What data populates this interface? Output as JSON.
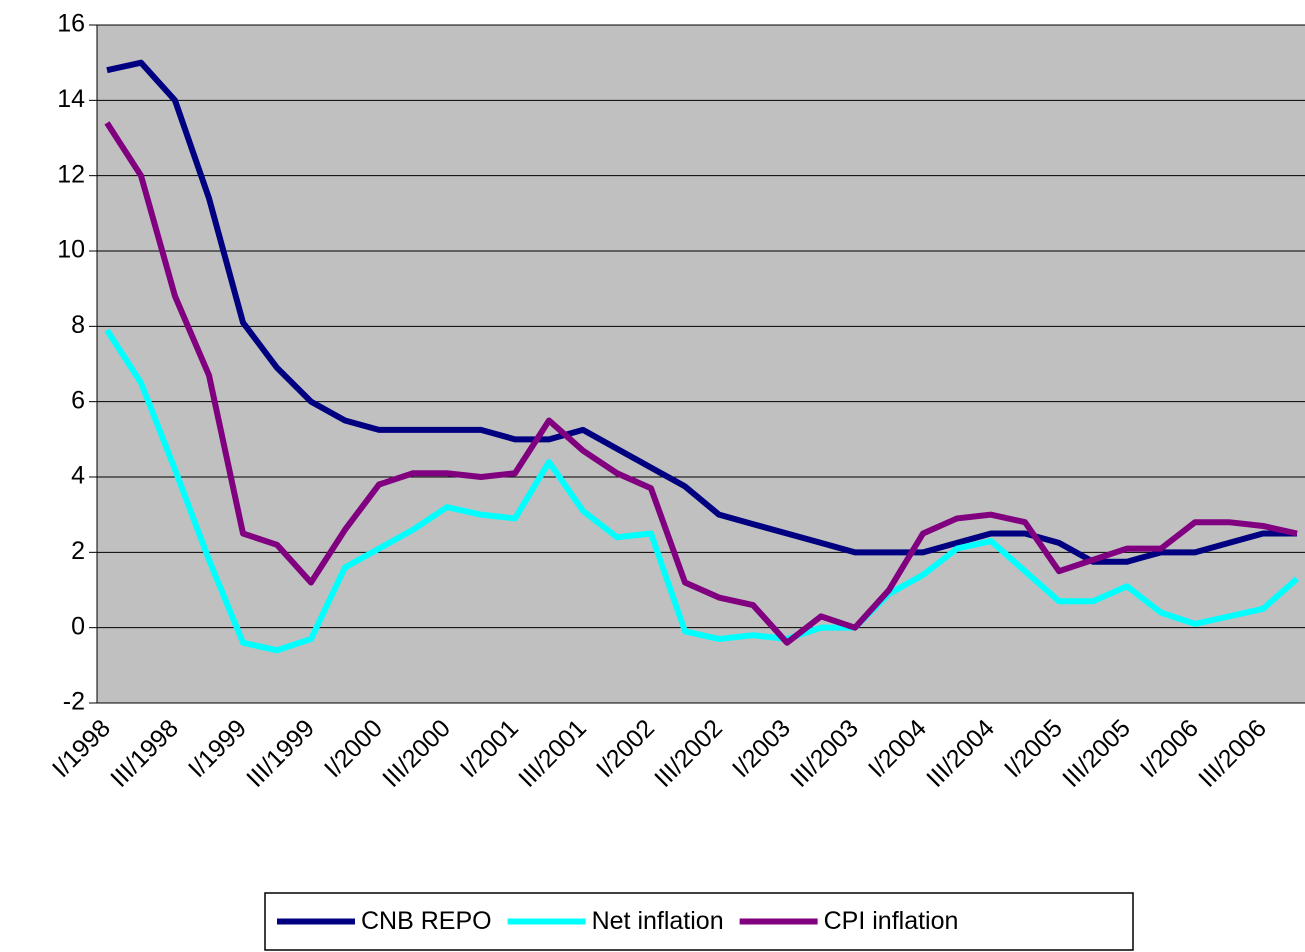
{
  "chart_data": {
    "type": "line",
    "categories": [
      "I/1998",
      null,
      "III/1998",
      null,
      "I/1999",
      null,
      "III/1999",
      null,
      "I/2000",
      null,
      "III/2000",
      null,
      "I/2001",
      null,
      "III/2001",
      null,
      "I/2002",
      null,
      "III/2002",
      null,
      "I/2003",
      null,
      "III/2003",
      null,
      "I/2004",
      null,
      "III/2004",
      null,
      "I/2005",
      null,
      "III/2005",
      null,
      "I/2006",
      null,
      "III/2006",
      null
    ],
    "series": [
      {
        "name": "CNB REPO",
        "color": "#000080",
        "values": [
          14.8,
          15,
          14,
          11.4,
          8.1,
          6.9,
          6,
          5.5,
          5.25,
          5.25,
          5.25,
          5.25,
          5,
          5,
          5.25,
          4.75,
          4.25,
          3.75,
          3,
          2.75,
          2.5,
          2.25,
          2,
          2,
          2,
          2.25,
          2.5,
          2.5,
          2.25,
          1.75,
          1.75,
          2,
          2,
          2.25,
          2.5,
          2.5
        ]
      },
      {
        "name": "Net inflation",
        "color": "#00ffff",
        "values": [
          7.9,
          6.5,
          4.2,
          1.8,
          -0.4,
          -0.6,
          -0.3,
          1.6,
          2.1,
          2.6,
          3.2,
          3.0,
          2.9,
          4.4,
          3.1,
          2.4,
          2.5,
          -0.1,
          -0.3,
          -0.2,
          -0.3,
          0,
          0,
          0.9,
          1.4,
          2.1,
          2.3,
          1.5,
          0.7,
          0.7,
          1.1,
          0.4,
          0.1,
          0.3,
          0.5,
          1.3
        ]
      },
      {
        "name": "CPI inflation",
        "color": "#800080",
        "values": [
          13.4,
          12,
          8.8,
          6.7,
          2.5,
          2.2,
          1.2,
          2.6,
          3.8,
          4.1,
          4.1,
          4.0,
          4.1,
          5.5,
          4.7,
          4.1,
          3.7,
          1.2,
          0.8,
          0.6,
          -0.4,
          0.3,
          0,
          1,
          2.5,
          2.9,
          3,
          2.8,
          1.5,
          1.8,
          2.1,
          2.1,
          2.8,
          2.8,
          2.7,
          2.5
        ]
      }
    ],
    "ylim": [
      -2,
      16
    ],
    "yticks": [
      -2,
      0,
      2,
      4,
      6,
      8,
      10,
      12,
      14,
      16
    ],
    "grid": true,
    "legend": "bottom"
  }
}
